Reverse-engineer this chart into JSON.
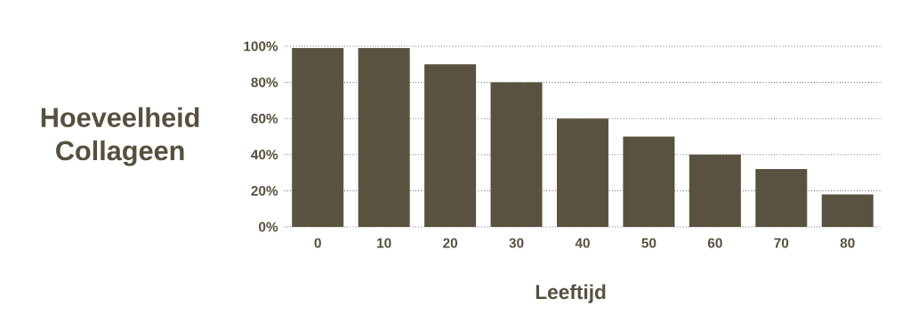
{
  "chart_data": {
    "type": "bar",
    "ylabel": "Hoeveelheid Collageen",
    "xlabel": "Leeftijd",
    "categories": [
      "0",
      "10",
      "20",
      "30",
      "40",
      "50",
      "60",
      "70",
      "80"
    ],
    "values": [
      99,
      99,
      90,
      80,
      60,
      50,
      40,
      32,
      18
    ],
    "color": "#5a5240",
    "ylim": [
      0,
      100
    ],
    "yticks": [
      {
        "value": 0,
        "label": "0%"
      },
      {
        "value": 20,
        "label": "20%"
      },
      {
        "value": 40,
        "label": "40%"
      },
      {
        "value": 60,
        "label": "60%"
      },
      {
        "value": 80,
        "label": "80%"
      },
      {
        "value": 100,
        "label": "100%"
      }
    ],
    "grid": "y"
  }
}
